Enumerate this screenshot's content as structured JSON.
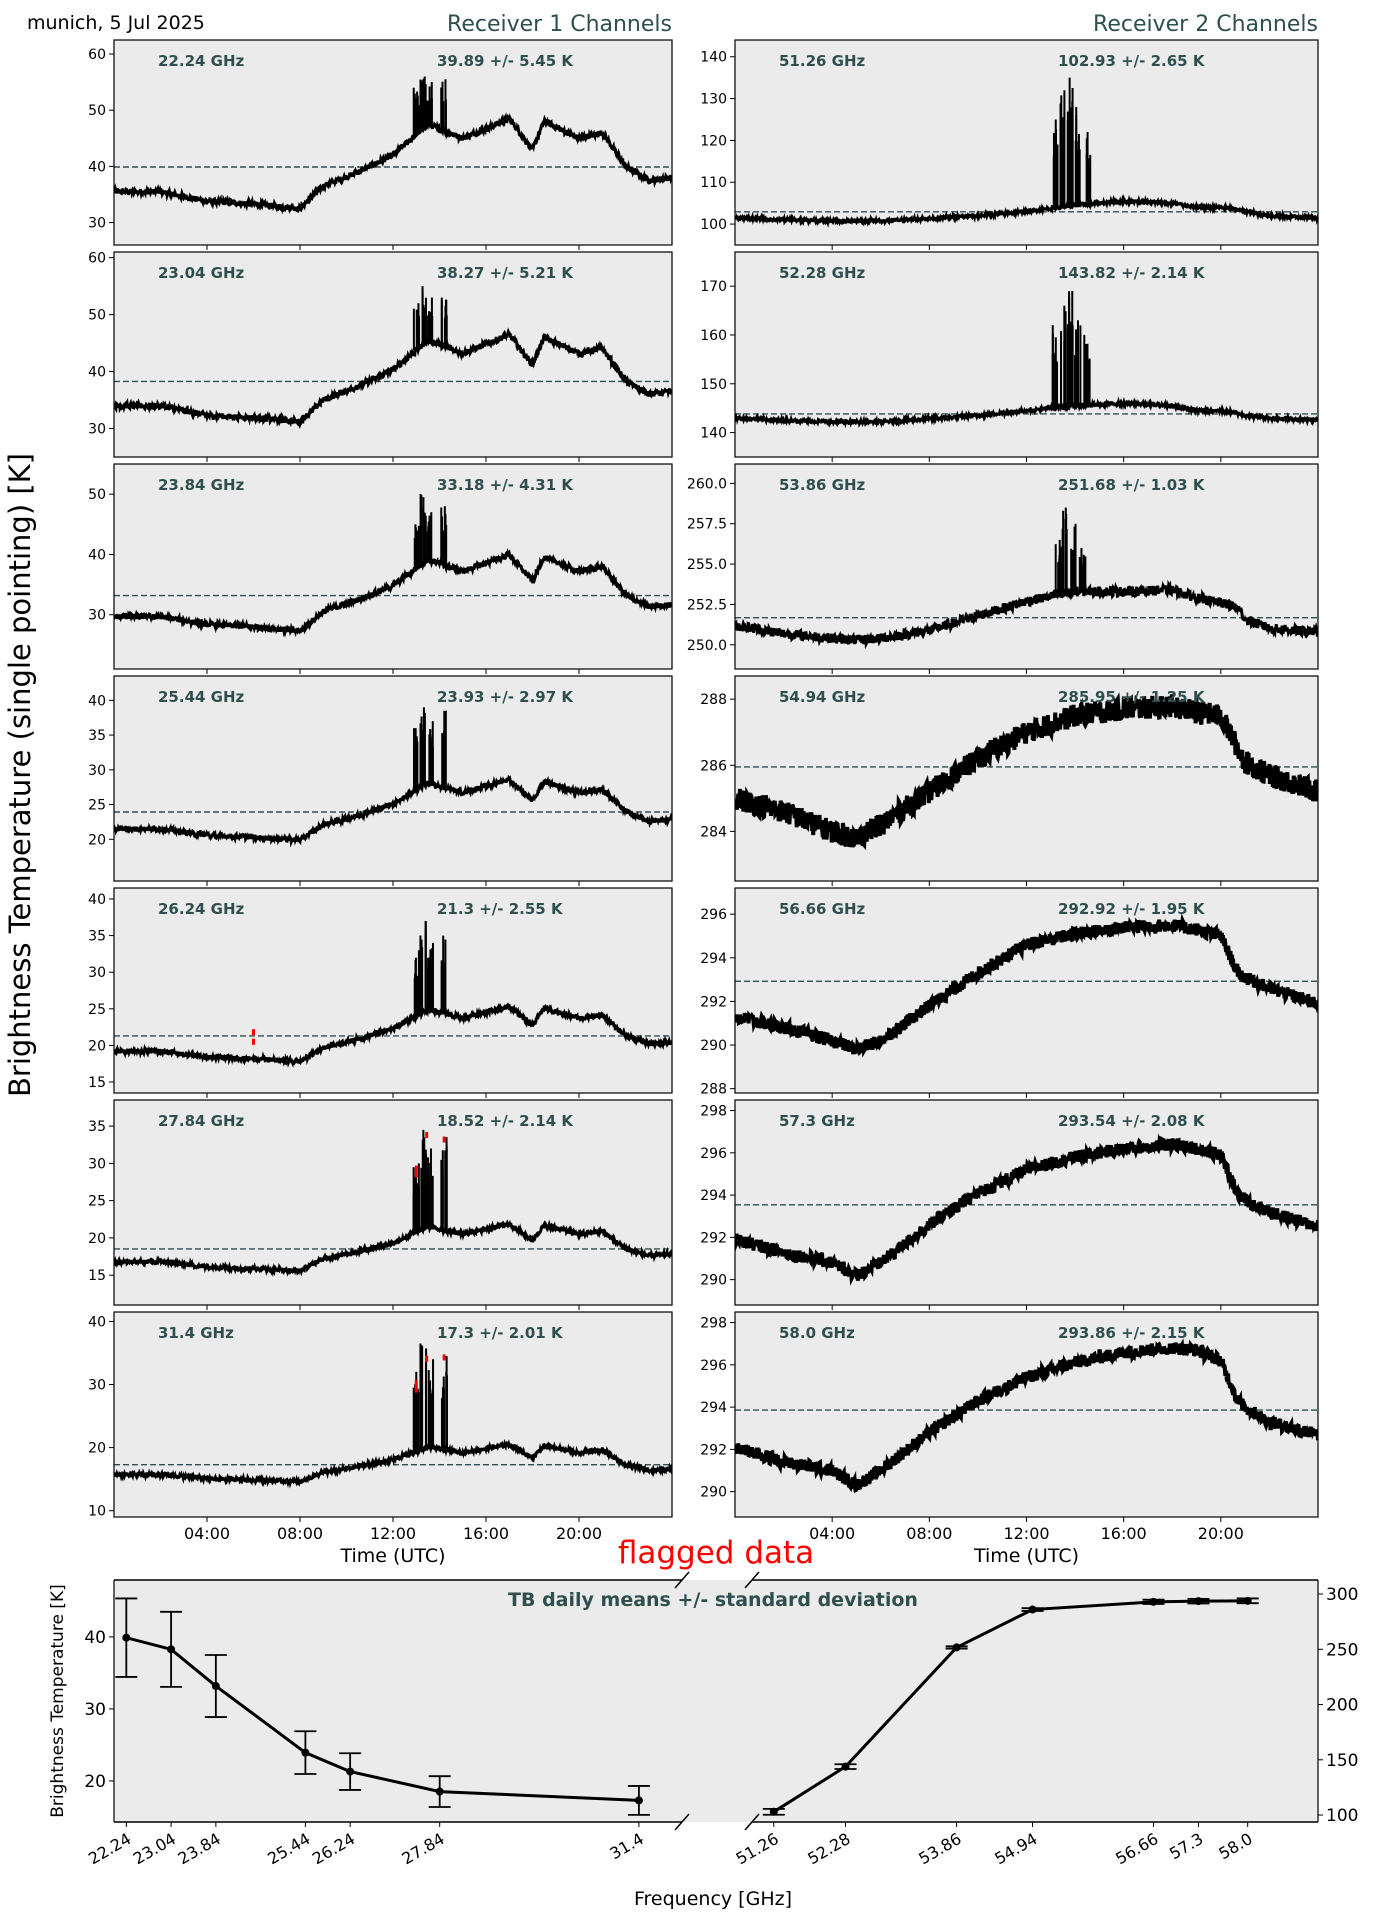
{
  "header": {
    "site_date": "munich, 5 Jul 2025",
    "receiver1_title": "Receiver 1 Channels",
    "receiver2_title": "Receiver 2 Channels",
    "ylabel": "Brightness Temperature (single pointing) [K]",
    "flag_legend": "flagged data",
    "flag_color": "#ff0000",
    "label_color": "#2f4f4f",
    "panel_bg": "#ebebeb"
  },
  "chart_data": [
    {
      "type": "line",
      "title": "Receiver 1 Channels",
      "xlabel": "Time (UTC)",
      "xlim": [
        0,
        24
      ],
      "xticks": [
        "04:00",
        "08:00",
        "12:00",
        "16:00",
        "20:00"
      ],
      "xtick_hours": [
        4,
        8,
        12,
        16,
        20
      ],
      "hours": [
        0,
        2,
        4,
        6,
        8,
        9,
        10.5,
        12,
        13.5,
        15,
        17,
        18,
        18.5,
        20,
        21,
        22,
        23,
        24
      ],
      "channels": [
        {
          "freq_label": "22.24 GHz",
          "stat_label": "39.89 +/- 5.45 K",
          "mean": 39.89,
          "ylim": [
            26,
            62.5
          ],
          "yticks": [
            "30",
            "40",
            "50",
            "60"
          ],
          "noise": 0.5,
          "values": [
            35.5,
            35.5,
            33.8,
            33.3,
            32.5,
            36.5,
            39,
            42,
            47.5,
            45,
            48.5,
            43,
            48,
            45,
            46,
            40,
            37.5,
            38
          ],
          "spikes": [
            [
              13.0,
              54
            ],
            [
              13.3,
              56
            ],
            [
              13.6,
              55
            ],
            [
              14.2,
              55.5
            ]
          ],
          "flagged": []
        },
        {
          "freq_label": "23.04 GHz",
          "stat_label": "38.27 +/- 5.21 K",
          "mean": 38.27,
          "ylim": [
            25,
            61
          ],
          "yticks": [
            "30",
            "40",
            "50",
            "60"
          ],
          "noise": 0.5,
          "values": [
            34,
            34,
            32.3,
            31.9,
            31.2,
            35,
            37.4,
            40.3,
            45.5,
            43.2,
            46.5,
            41.2,
            46,
            43.2,
            44.1,
            38.4,
            36,
            36.5
          ],
          "spikes": [
            [
              13.0,
              52
            ],
            [
              13.3,
              55
            ],
            [
              13.6,
              53
            ],
            [
              14.2,
              53
            ]
          ],
          "flagged": []
        },
        {
          "freq_label": "23.84 GHz",
          "stat_label": "33.18 +/- 4.31 K",
          "mean": 33.18,
          "ylim": [
            21,
            55
          ],
          "yticks": [
            "30",
            "40",
            "50"
          ],
          "noise": 0.45,
          "values": [
            29.7,
            29.7,
            28.4,
            28,
            27.3,
            30.5,
            32.5,
            34.8,
            39.2,
            37.2,
            40,
            35.6,
            39.6,
            37.2,
            38,
            33.3,
            31.3,
            31.7
          ],
          "spikes": [
            [
              13.0,
              45
            ],
            [
              13.3,
              50
            ],
            [
              13.6,
              47
            ],
            [
              14.2,
              48
            ]
          ],
          "flagged": []
        },
        {
          "freq_label": "25.44 GHz",
          "stat_label": "23.93 +/- 2.97 K",
          "mean": 23.93,
          "ylim": [
            14,
            43.5
          ],
          "yticks": [
            "20",
            "25",
            "30",
            "35",
            "40"
          ],
          "noise": 0.35,
          "values": [
            21.5,
            21.5,
            20.6,
            20.3,
            19.9,
            22.1,
            23.4,
            25.1,
            28.1,
            26.7,
            28.6,
            25.6,
            28.3,
            26.7,
            27.2,
            24,
            22.6,
            22.9
          ],
          "spikes": [
            [
              13.0,
              36
            ],
            [
              13.3,
              39
            ],
            [
              13.6,
              37
            ],
            [
              14.2,
              38.5
            ]
          ],
          "flagged": []
        },
        {
          "freq_label": "26.24 GHz",
          "stat_label": "21.3 +/- 2.55 K",
          "mean": 21.3,
          "ylim": [
            13.5,
            41.5
          ],
          "yticks": [
            "15",
            "20",
            "25",
            "30",
            "35",
            "40"
          ],
          "noise": 0.3,
          "values": [
            19.2,
            19.2,
            18.4,
            18.2,
            17.8,
            19.7,
            20.9,
            22.3,
            24.9,
            23.7,
            25.3,
            22.8,
            25.1,
            23.7,
            24.2,
            21.3,
            20.2,
            20.4
          ],
          "spikes": [
            [
              13.0,
              33
            ],
            [
              13.3,
              37
            ],
            [
              13.6,
              34
            ],
            [
              14.2,
              35
            ]
          ],
          "flagged": [
            [
              6.0,
              20.5
            ],
            [
              6.0,
              21.8
            ]
          ]
        },
        {
          "freq_label": "27.84 GHz",
          "stat_label": "18.52 +/- 2.14 K",
          "mean": 18.52,
          "ylim": [
            11,
            38.5
          ],
          "yticks": [
            "15",
            "20",
            "25",
            "30",
            "35"
          ],
          "noise": 0.28,
          "values": [
            16.8,
            16.8,
            16.1,
            15.9,
            15.6,
            17.2,
            18.2,
            19.3,
            21.5,
            20.5,
            21.9,
            19.7,
            21.7,
            20.5,
            20.9,
            18.6,
            17.6,
            17.8
          ],
          "spikes": [
            [
              13.0,
              30
            ],
            [
              13.3,
              34.5
            ],
            [
              13.6,
              32
            ],
            [
              14.2,
              33.5
            ]
          ],
          "flagged": [
            [
              13.0,
              28.5
            ],
            [
              13.0,
              29.3
            ],
            [
              13.45,
              33.8
            ],
            [
              14.2,
              33.2
            ]
          ]
        },
        {
          "freq_label": "31.4 GHz",
          "stat_label": "17.3 +/- 2.01 K",
          "mean": 17.3,
          "ylim": [
            9,
            41.5
          ],
          "yticks": [
            "10",
            "20",
            "30",
            "40"
          ],
          "noise": 0.28,
          "values": [
            15.7,
            15.7,
            15.1,
            14.9,
            14.6,
            16.0,
            17.0,
            18.1,
            20.1,
            19.2,
            20.5,
            18.4,
            20.3,
            19.2,
            19.6,
            17.3,
            16.4,
            16.6
          ],
          "spikes": [
            [
              13.0,
              32
            ],
            [
              13.3,
              36.5
            ],
            [
              13.6,
              34
            ],
            [
              14.2,
              34.5
            ]
          ],
          "flagged": [
            [
              13.0,
              29.2
            ],
            [
              13.0,
              30.2
            ],
            [
              13.45,
              34.1
            ],
            [
              14.2,
              34.3
            ]
          ]
        }
      ]
    },
    {
      "type": "line",
      "title": "Receiver 2 Channels",
      "xlabel": "Time (UTC)",
      "xlim": [
        0,
        24
      ],
      "xticks": [
        "04:00",
        "08:00",
        "12:00",
        "16:00",
        "20:00"
      ],
      "xtick_hours": [
        4,
        8,
        12,
        16,
        20
      ],
      "hours": [
        0,
        2,
        4,
        5,
        6,
        8,
        10,
        12,
        14,
        16,
        18,
        19,
        20,
        20.7,
        21,
        22,
        24
      ],
      "channels": [
        {
          "freq_label": "51.26 GHz",
          "stat_label": "102.93 +/- 2.65 K",
          "mean": 102.93,
          "ylim": [
            95,
            144
          ],
          "yticks": [
            "100",
            "110",
            "120",
            "130",
            "140"
          ],
          "noise": 0.35,
          "values": [
            101.5,
            101,
            100.8,
            100.7,
            100.8,
            101.3,
            102,
            103,
            104.5,
            105.5,
            105,
            104,
            104,
            103.5,
            103,
            102,
            101.5
          ],
          "spikes": [
            [
              13.2,
              125
            ],
            [
              13.5,
              132
            ],
            [
              13.8,
              135
            ],
            [
              14.1,
              128
            ],
            [
              14.5,
              122
            ]
          ],
          "flagged": []
        },
        {
          "freq_label": "52.28 GHz",
          "stat_label": "143.82 +/- 2.14 K",
          "mean": 143.82,
          "ylim": [
            135,
            177
          ],
          "yticks": [
            "140",
            "150",
            "160",
            "170"
          ],
          "noise": 0.3,
          "values": [
            143,
            142.5,
            142.2,
            142.2,
            142.2,
            142.8,
            143.5,
            144.5,
            145.5,
            146,
            145.5,
            144.5,
            144.5,
            144,
            143.5,
            143,
            142.5
          ],
          "spikes": [
            [
              13.2,
              162
            ],
            [
              13.5,
              166
            ],
            [
              13.8,
              169
            ],
            [
              14.1,
              163
            ],
            [
              14.5,
              160
            ]
          ],
          "flagged": []
        },
        {
          "freq_label": "53.86 GHz",
          "stat_label": "251.68 +/- 1.03 K",
          "mean": 251.68,
          "ylim": [
            248.5,
            261.2
          ],
          "yticks": [
            "250.0",
            "252.5",
            "255.0",
            "257.5",
            "260.0"
          ],
          "noise": 0.3,
          "values": [
            251.2,
            250.7,
            250.4,
            250.3,
            250.4,
            250.9,
            251.8,
            252.7,
            253.3,
            253.3,
            253.4,
            252.9,
            252.6,
            252.3,
            251.6,
            251.0,
            250.8
          ],
          "spikes": [
            [
              13.3,
              256.5
            ],
            [
              13.6,
              258.5
            ],
            [
              13.9,
              257.5
            ],
            [
              14.3,
              256
            ]
          ],
          "flagged": []
        },
        {
          "freq_label": "54.94 GHz",
          "stat_label": "285.95 +/- 1.25 K",
          "mean": 285.95,
          "ylim": [
            282.5,
            288.7
          ],
          "yticks": [
            "284",
            "286",
            "288"
          ],
          "noise": 0.35,
          "values": [
            285,
            284.6,
            284,
            283.8,
            284.2,
            285.2,
            286.2,
            287,
            287.5,
            287.7,
            287.8,
            287.6,
            287.5,
            286.5,
            286.1,
            285.7,
            285.2
          ],
          "spikes": [],
          "flagged": []
        },
        {
          "freq_label": "56.66 GHz",
          "stat_label": "292.92 +/- 1.95 K",
          "mean": 292.92,
          "ylim": [
            287.8,
            297.2
          ],
          "yticks": [
            "288",
            "290",
            "292",
            "294",
            "296"
          ],
          "noise": 0.3,
          "values": [
            291.3,
            290.8,
            290.2,
            289.8,
            290.2,
            291.8,
            293.3,
            294.6,
            295.1,
            295.4,
            295.5,
            295.3,
            295,
            293.3,
            293.1,
            292.6,
            291.9
          ],
          "spikes": [],
          "flagged": []
        },
        {
          "freq_label": "57.3 GHz",
          "stat_label": "293.54 +/- 2.08 K",
          "mean": 293.54,
          "ylim": [
            288.8,
            298.5
          ],
          "yticks": [
            "290",
            "292",
            "294",
            "296",
            "298"
          ],
          "noise": 0.3,
          "values": [
            291.9,
            291.3,
            290.8,
            290.2,
            290.8,
            292.6,
            294.1,
            295.2,
            295.8,
            296.2,
            296.4,
            296.2,
            295.9,
            294,
            293.8,
            293.2,
            292.5
          ],
          "spikes": [],
          "flagged": []
        },
        {
          "freq_label": "58.0 GHz",
          "stat_label": "293.86 +/- 2.15 K",
          "mean": 293.86,
          "ylim": [
            288.8,
            298.5
          ],
          "yticks": [
            "290",
            "292",
            "294",
            "296",
            "298"
          ],
          "noise": 0.3,
          "values": [
            292.1,
            291.4,
            291,
            290.3,
            291,
            292.8,
            294.3,
            295.4,
            296.1,
            296.6,
            296.8,
            296.7,
            296.2,
            294.3,
            294,
            293.3,
            292.7
          ],
          "spikes": [],
          "flagged": []
        }
      ]
    },
    {
      "type": "line",
      "title": "TB daily means +/- standard deviation",
      "xlabel": "Frequency [GHz]",
      "ylabel": "Brightness Temperature [K]",
      "broken_x_axis": true,
      "left": {
        "xlim": [
          22.02,
          32.17
        ],
        "ylim": [
          14.3,
          47.9
        ],
        "yticks": [
          "20",
          "30",
          "40"
        ],
        "freqs": [
          22.24,
          23.04,
          23.84,
          25.44,
          26.24,
          27.84,
          31.4
        ],
        "freq_labels": [
          "22.24",
          "23.04",
          "23.84",
          "25.44",
          "26.24",
          "27.84",
          "31.4"
        ],
        "means": [
          39.89,
          38.27,
          33.18,
          23.93,
          21.3,
          18.52,
          17.3
        ],
        "std": [
          5.45,
          5.21,
          4.31,
          2.97,
          2.55,
          2.14,
          2.01
        ]
      },
      "right": {
        "xlim": [
          50.95,
          59.0
        ],
        "ylim": [
          93.7,
          312.7
        ],
        "yticks": [
          "100",
          "150",
          "200",
          "250",
          "300"
        ],
        "freqs": [
          51.26,
          52.28,
          53.86,
          54.94,
          56.66,
          57.3,
          58.0
        ],
        "freq_labels": [
          "51.26",
          "52.28",
          "53.86",
          "54.94",
          "56.66",
          "57.3",
          "58.0"
        ],
        "means": [
          102.93,
          143.82,
          251.68,
          285.95,
          292.92,
          293.54,
          293.86
        ],
        "std": [
          2.65,
          2.14,
          1.03,
          1.25,
          1.95,
          2.08,
          2.15
        ]
      }
    }
  ]
}
